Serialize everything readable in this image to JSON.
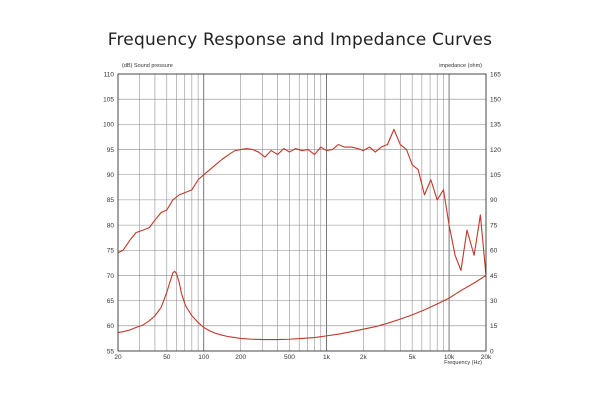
{
  "title": "Frequency Response and Impedance Curves",
  "chart_data": {
    "type": "line",
    "title": "Frequency Response and Impedance Curves",
    "xlabel": "Frequency (Hz)",
    "ylabel_left": "(dB) Sound pressure",
    "ylabel_right": "impedance (ohm)",
    "xscale": "log",
    "xlim": [
      20,
      20000
    ],
    "ylim_left": [
      55,
      110
    ],
    "ylim_right": [
      0,
      165
    ],
    "grid": true,
    "x_ticks": [
      {
        "value": 20,
        "label": "20"
      },
      {
        "value": 50,
        "label": "50"
      },
      {
        "value": 100,
        "label": "100"
      },
      {
        "value": 200,
        "label": "200"
      },
      {
        "value": 500,
        "label": "500"
      },
      {
        "value": 1000,
        "label": "1k"
      },
      {
        "value": 2000,
        "label": "2k"
      },
      {
        "value": 5000,
        "label": "5k"
      },
      {
        "value": 10000,
        "label": "10k"
      },
      {
        "value": 20000,
        "label": "20k"
      }
    ],
    "y_ticks_left": [
      55,
      60,
      65,
      70,
      75,
      80,
      85,
      90,
      95,
      100,
      105,
      110
    ],
    "y_ticks_right": [
      0,
      15,
      30,
      45,
      60,
      75,
      90,
      105,
      120,
      135,
      150,
      165
    ],
    "line_color": "#c0392b",
    "series": [
      {
        "name": "Sound pressure (dB)",
        "axis": "left",
        "x": [
          20,
          22,
          25,
          28,
          32,
          36,
          40,
          45,
          50,
          56,
          63,
          71,
          80,
          90,
          100,
          112,
          125,
          140,
          160,
          180,
          200,
          225,
          250,
          280,
          315,
          355,
          400,
          450,
          500,
          560,
          630,
          710,
          800,
          900,
          1000,
          1120,
          1250,
          1400,
          1600,
          1800,
          2000,
          2250,
          2500,
          2800,
          3150,
          3550,
          4000,
          4500,
          5000,
          5600,
          6300,
          7100,
          8000,
          9000,
          10000,
          11200,
          12500,
          14000,
          16000,
          18000,
          20000
        ],
        "y": [
          74.5,
          75,
          77,
          78.5,
          79,
          79.5,
          81,
          82.5,
          83,
          85,
          86,
          86.5,
          87,
          89,
          90,
          91,
          92,
          93,
          94,
          94.8,
          95,
          95.2,
          95,
          94.5,
          93.5,
          94.8,
          94,
          95.2,
          94.5,
          95.2,
          94.8,
          95,
          94,
          95.5,
          94.8,
          95,
          96,
          95.5,
          95.5,
          95.2,
          94.8,
          95.5,
          94.5,
          95.5,
          96,
          99,
          96,
          95,
          92,
          91,
          86,
          89,
          85,
          87,
          80,
          74,
          71,
          79,
          74,
          82,
          70
        ]
      },
      {
        "name": "Impedance (ohm)",
        "axis": "right",
        "x": [
          20,
          22,
          25,
          28,
          32,
          36,
          40,
          45,
          50,
          53,
          56,
          58,
          60,
          63,
          66,
          71,
          80,
          90,
          100,
          112,
          125,
          140,
          160,
          180,
          200,
          250,
          315,
          400,
          500,
          630,
          800,
          1000,
          1250,
          1600,
          2000,
          2500,
          3150,
          4000,
          5000,
          6300,
          8000,
          10000,
          12500,
          16000,
          20000
        ],
        "y": [
          11,
          11.5,
          12.5,
          14,
          15.5,
          18,
          21,
          26,
          35,
          41,
          46.5,
          47.5,
          46,
          41,
          34,
          27,
          21,
          17,
          14,
          12,
          10.5,
          9.5,
          8.5,
          8,
          7.5,
          7,
          6.8,
          6.8,
          7,
          7.5,
          8,
          9,
          10,
          11.5,
          13,
          14.5,
          16.5,
          19,
          21.5,
          24.5,
          28,
          31.5,
          36,
          40.5,
          45
        ]
      }
    ]
  }
}
